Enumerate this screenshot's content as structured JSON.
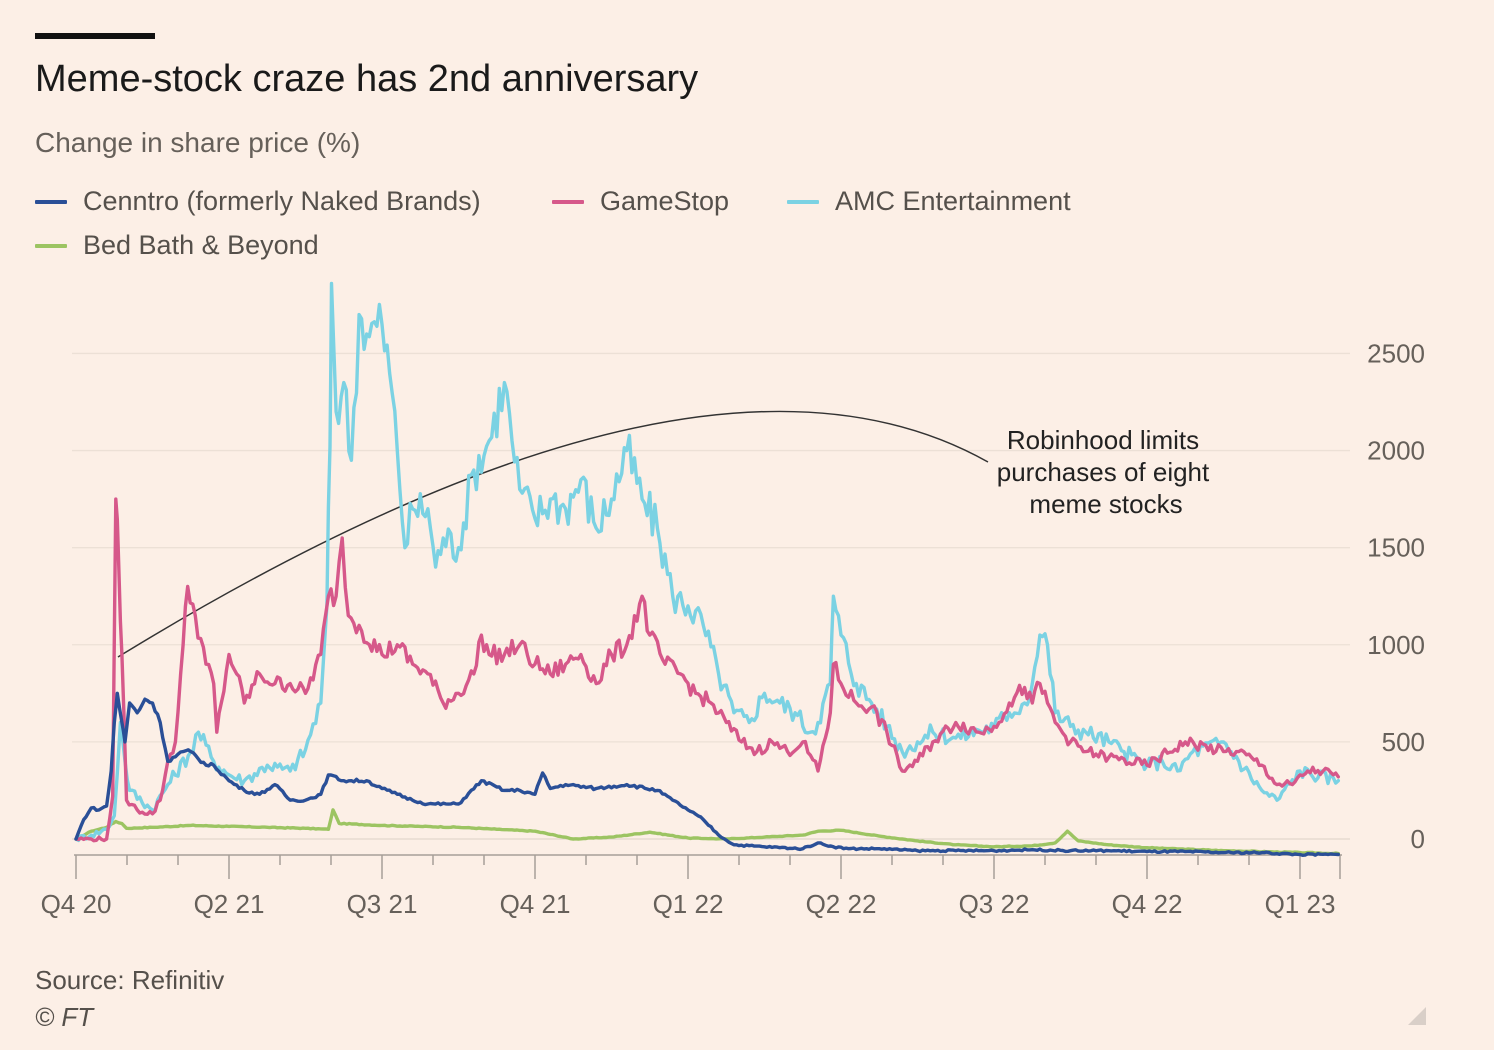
{
  "title": "Meme-stock craze has 2nd anniversary",
  "subtitle": "Change in share price (%)",
  "source": "Source: Refinitiv",
  "credit": "© FT",
  "chart_data": {
    "type": "line",
    "ylim": [
      -100,
      2800
    ],
    "xlim": [
      0,
      9.75
    ],
    "y_ticks": [
      0,
      500,
      1000,
      1500,
      2000,
      2500
    ],
    "x_ticks": [
      {
        "x": 0,
        "label": "Q4 20"
      },
      {
        "x": 1,
        "label": "Q2 21"
      },
      {
        "x": 2,
        "label": "Q3 21"
      },
      {
        "x": 3,
        "label": "Q4 21"
      },
      {
        "x": 4,
        "label": "Q1 22"
      },
      {
        "x": 5,
        "label": "Q2 22"
      },
      {
        "x": 6,
        "label": "Q3 22"
      },
      {
        "x": 7,
        "label": "Q4 22"
      },
      {
        "x": 8,
        "label": "Q1 23"
      }
    ],
    "grid": true,
    "legend_position": "top-left",
    "annotation": {
      "lines": [
        "Robinhood limits",
        "purchases of eight",
        "meme stocks"
      ]
    },
    "series": [
      {
        "name": "Bed Bath & Beyond",
        "color": "#9cc462",
        "points": [
          [
            0,
            0
          ],
          [
            0.1,
            40
          ],
          [
            0.2,
            60
          ],
          [
            0.26,
            90
          ],
          [
            0.3,
            80
          ],
          [
            0.33,
            55
          ],
          [
            0.5,
            60
          ],
          [
            0.75,
            70
          ],
          [
            1,
            65
          ],
          [
            1.25,
            60
          ],
          [
            1.5,
            55
          ],
          [
            1.65,
            50
          ],
          [
            1.68,
            150
          ],
          [
            1.72,
            80
          ],
          [
            2,
            70
          ],
          [
            2.25,
            65
          ],
          [
            2.5,
            60
          ],
          [
            2.75,
            50
          ],
          [
            3,
            40
          ],
          [
            3.25,
            0
          ],
          [
            3.5,
            10
          ],
          [
            3.75,
            35
          ],
          [
            4,
            5
          ],
          [
            4.25,
            0
          ],
          [
            4.5,
            10
          ],
          [
            4.75,
            20
          ],
          [
            4.85,
            40
          ],
          [
            5,
            45
          ],
          [
            5.25,
            15
          ],
          [
            5.5,
            -10
          ],
          [
            5.75,
            -30
          ],
          [
            6,
            -40
          ],
          [
            6.25,
            -35
          ],
          [
            6.4,
            -20
          ],
          [
            6.48,
            40
          ],
          [
            6.55,
            -10
          ],
          [
            6.75,
            -30
          ],
          [
            7,
            -45
          ],
          [
            7.5,
            -60
          ],
          [
            8,
            -70
          ],
          [
            8.25,
            -75
          ]
        ]
      },
      {
        "name": "AMC Entertainment",
        "color": "#7bd2e3",
        "points": [
          [
            0,
            0
          ],
          [
            0.1,
            20
          ],
          [
            0.2,
            50
          ],
          [
            0.25,
            120
          ],
          [
            0.29,
            600
          ],
          [
            0.32,
            400
          ],
          [
            0.35,
            250
          ],
          [
            0.5,
            150
          ],
          [
            0.6,
            280
          ],
          [
            0.75,
            450
          ],
          [
            0.8,
            550
          ],
          [
            0.9,
            400
          ],
          [
            1,
            330
          ],
          [
            1.1,
            300
          ],
          [
            1.25,
            380
          ],
          [
            1.4,
            350
          ],
          [
            1.5,
            460
          ],
          [
            1.6,
            700
          ],
          [
            1.64,
            1200
          ],
          [
            1.66,
            2020
          ],
          [
            1.67,
            2860
          ],
          [
            1.7,
            2200
          ],
          [
            1.75,
            2350
          ],
          [
            1.8,
            1950
          ],
          [
            1.85,
            2700
          ],
          [
            1.9,
            2600
          ],
          [
            2,
            2650
          ],
          [
            2.05,
            2400
          ],
          [
            2.1,
            2000
          ],
          [
            2.15,
            1500
          ],
          [
            2.2,
            1700
          ],
          [
            2.3,
            1700
          ],
          [
            2.35,
            1400
          ],
          [
            2.4,
            1550
          ],
          [
            2.5,
            1500
          ],
          [
            2.6,
            1900
          ],
          [
            2.7,
            2050
          ],
          [
            2.8,
            2350
          ],
          [
            2.85,
            2050
          ],
          [
            2.9,
            1800
          ],
          [
            3,
            1650
          ],
          [
            3.1,
            1750
          ],
          [
            3.2,
            1700
          ],
          [
            3.3,
            1850
          ],
          [
            3.4,
            1600
          ],
          [
            3.5,
            1750
          ],
          [
            3.6,
            2000
          ],
          [
            3.7,
            1750
          ],
          [
            3.8,
            1600
          ],
          [
            3.9,
            1250
          ],
          [
            4,
            1200
          ],
          [
            4.1,
            1100
          ],
          [
            4.2,
            850
          ],
          [
            4.3,
            650
          ],
          [
            4.4,
            600
          ],
          [
            4.5,
            750
          ],
          [
            4.6,
            700
          ],
          [
            4.7,
            650
          ],
          [
            4.8,
            550
          ],
          [
            4.85,
            600
          ],
          [
            4.93,
            800
          ],
          [
            4.95,
            1250
          ],
          [
            5,
            1050
          ],
          [
            5.1,
            800
          ],
          [
            5.2,
            700
          ],
          [
            5.3,
            580
          ],
          [
            5.4,
            450
          ],
          [
            5.5,
            500
          ],
          [
            5.6,
            550
          ],
          [
            5.75,
            520
          ],
          [
            5.9,
            560
          ],
          [
            6,
            580
          ],
          [
            6.1,
            650
          ],
          [
            6.2,
            700
          ],
          [
            6.25,
            800
          ],
          [
            6.3,
            1050
          ],
          [
            6.35,
            1000
          ],
          [
            6.4,
            650
          ],
          [
            6.5,
            580
          ],
          [
            6.6,
            550
          ],
          [
            6.75,
            500
          ],
          [
            6.85,
            450
          ],
          [
            7,
            380
          ],
          [
            7.1,
            400
          ],
          [
            7.2,
            350
          ],
          [
            7.3,
            450
          ],
          [
            7.5,
            500
          ],
          [
            7.6,
            400
          ],
          [
            7.75,
            250
          ],
          [
            7.85,
            200
          ],
          [
            8,
            350
          ],
          [
            8.25,
            300
          ]
        ]
      },
      {
        "name": "GameStop",
        "color": "#d6588a",
        "points": [
          [
            0,
            0
          ],
          [
            0.1,
            0
          ],
          [
            0.2,
            0
          ],
          [
            0.24,
            220
          ],
          [
            0.26,
            1750
          ],
          [
            0.28,
            1400
          ],
          [
            0.3,
            950
          ],
          [
            0.33,
            200
          ],
          [
            0.4,
            150
          ],
          [
            0.5,
            130
          ],
          [
            0.55,
            200
          ],
          [
            0.6,
            400
          ],
          [
            0.65,
            500
          ],
          [
            0.7,
            1000
          ],
          [
            0.73,
            1300
          ],
          [
            0.78,
            1150
          ],
          [
            0.85,
            900
          ],
          [
            0.9,
            800
          ],
          [
            0.92,
            550
          ],
          [
            0.95,
            700
          ],
          [
            1,
            950
          ],
          [
            1.05,
            850
          ],
          [
            1.1,
            700
          ],
          [
            1.2,
            850
          ],
          [
            1.3,
            800
          ],
          [
            1.4,
            800
          ],
          [
            1.5,
            750
          ],
          [
            1.6,
            950
          ],
          [
            1.65,
            1250
          ],
          [
            1.7,
            1250
          ],
          [
            1.74,
            1550
          ],
          [
            1.78,
            1150
          ],
          [
            1.85,
            1100
          ],
          [
            2,
            950
          ],
          [
            2.1,
            1000
          ],
          [
            2.2,
            900
          ],
          [
            2.3,
            850
          ],
          [
            2.4,
            700
          ],
          [
            2.5,
            750
          ],
          [
            2.6,
            850
          ],
          [
            2.65,
            1050
          ],
          [
            2.7,
            950
          ],
          [
            2.8,
            950
          ],
          [
            2.9,
            1000
          ],
          [
            3,
            900
          ],
          [
            3.1,
            850
          ],
          [
            3.2,
            900
          ],
          [
            3.3,
            950
          ],
          [
            3.4,
            800
          ],
          [
            3.5,
            950
          ],
          [
            3.6,
            1000
          ],
          [
            3.7,
            1250
          ],
          [
            3.75,
            1050
          ],
          [
            3.85,
            900
          ],
          [
            3.95,
            850
          ],
          [
            4.05,
            750
          ],
          [
            4.15,
            700
          ],
          [
            4.25,
            600
          ],
          [
            4.35,
            500
          ],
          [
            4.45,
            450
          ],
          [
            4.55,
            500
          ],
          [
            4.65,
            450
          ],
          [
            4.75,
            500
          ],
          [
            4.85,
            350
          ],
          [
            4.93,
            650
          ],
          [
            4.95,
            900
          ],
          [
            5,
            800
          ],
          [
            5.1,
            700
          ],
          [
            5.2,
            680
          ],
          [
            5.3,
            550
          ],
          [
            5.4,
            350
          ],
          [
            5.5,
            400
          ],
          [
            5.6,
            500
          ],
          [
            5.75,
            600
          ],
          [
            5.9,
            550
          ],
          [
            6,
            580
          ],
          [
            6.1,
            700
          ],
          [
            6.2,
            780
          ],
          [
            6.25,
            700
          ],
          [
            6.3,
            800
          ],
          [
            6.35,
            700
          ],
          [
            6.4,
            600
          ],
          [
            6.5,
            500
          ],
          [
            6.6,
            450
          ],
          [
            6.75,
            420
          ],
          [
            7,
            380
          ],
          [
            7.25,
            500
          ],
          [
            7.5,
            450
          ],
          [
            7.6,
            450
          ],
          [
            7.75,
            380
          ],
          [
            7.85,
            280
          ],
          [
            7.95,
            280
          ],
          [
            8.05,
            350
          ],
          [
            8.15,
            350
          ],
          [
            8.25,
            320
          ]
        ]
      },
      {
        "name": "Cenntro (formerly Naked Brands)",
        "color": "#2a4f97",
        "points": [
          [
            0,
            0
          ],
          [
            0.05,
            100
          ],
          [
            0.1,
            160
          ],
          [
            0.15,
            150
          ],
          [
            0.2,
            170
          ],
          [
            0.23,
            350
          ],
          [
            0.25,
            600
          ],
          [
            0.27,
            750
          ],
          [
            0.3,
            600
          ],
          [
            0.32,
            500
          ],
          [
            0.35,
            700
          ],
          [
            0.4,
            650
          ],
          [
            0.45,
            720
          ],
          [
            0.5,
            700
          ],
          [
            0.55,
            600
          ],
          [
            0.6,
            400
          ],
          [
            0.7,
            450
          ],
          [
            0.75,
            450
          ],
          [
            0.85,
            380
          ],
          [
            0.9,
            380
          ],
          [
            1,
            300
          ],
          [
            1.1,
            250
          ],
          [
            1.2,
            230
          ],
          [
            1.3,
            280
          ],
          [
            1.4,
            200
          ],
          [
            1.5,
            200
          ],
          [
            1.6,
            230
          ],
          [
            1.65,
            330
          ],
          [
            1.75,
            300
          ],
          [
            1.9,
            300
          ],
          [
            2,
            260
          ],
          [
            2.1,
            230
          ],
          [
            2.2,
            200
          ],
          [
            2.3,
            180
          ],
          [
            2.5,
            180
          ],
          [
            2.65,
            300
          ],
          [
            2.8,
            250
          ],
          [
            2.9,
            250
          ],
          [
            3,
            230
          ],
          [
            3.05,
            340
          ],
          [
            3.1,
            260
          ],
          [
            3.2,
            280
          ],
          [
            3.4,
            260
          ],
          [
            3.6,
            280
          ],
          [
            3.8,
            250
          ],
          [
            3.9,
            200
          ],
          [
            4,
            150
          ],
          [
            4.1,
            100
          ],
          [
            4.2,
            20
          ],
          [
            4.3,
            -30
          ],
          [
            4.5,
            -40
          ],
          [
            4.75,
            -50
          ],
          [
            4.85,
            -20
          ],
          [
            4.95,
            -40
          ],
          [
            5.05,
            -50
          ],
          [
            5.25,
            -50
          ],
          [
            5.5,
            -60
          ],
          [
            5.75,
            -60
          ],
          [
            6,
            -60
          ],
          [
            6.25,
            -55
          ],
          [
            6.5,
            -60
          ],
          [
            6.75,
            -60
          ],
          [
            7,
            -65
          ],
          [
            7.25,
            -65
          ],
          [
            7.5,
            -70
          ],
          [
            7.75,
            -70
          ],
          [
            8,
            -80
          ],
          [
            8.25,
            -80
          ]
        ]
      }
    ]
  }
}
